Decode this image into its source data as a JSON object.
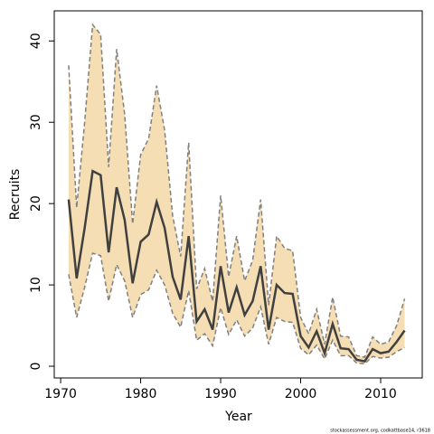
{
  "chart_data": {
    "type": "line",
    "xlabel": "Year",
    "ylabel": "Recruits",
    "footnote": "stockassessment.org, codkattbase14, r3618",
    "x": [
      1971,
      1972,
      1973,
      1974,
      1975,
      1976,
      1977,
      1978,
      1979,
      1980,
      1981,
      1982,
      1983,
      1984,
      1985,
      1986,
      1987,
      1988,
      1989,
      1990,
      1991,
      1992,
      1993,
      1994,
      1995,
      1996,
      1997,
      1998,
      1999,
      2000,
      2001,
      2002,
      2003,
      2004,
      2005,
      2006,
      2007,
      2008,
      2009,
      2010,
      2011,
      2012,
      2013
    ],
    "values": [
      20.5,
      10.8,
      17,
      24,
      23.5,
      14,
      22,
      18,
      10.2,
      15.3,
      16.2,
      20.2,
      17,
      11,
      8.2,
      16,
      5.5,
      7,
      4.5,
      12.3,
      6.6,
      9.7,
      6.3,
      8,
      12.3,
      4.5,
      10,
      9,
      8.9,
      3.7,
      2.3,
      4.3,
      1.6,
      5.2,
      2.2,
      2.1,
      0.8,
      0.6,
      2.1,
      1.6,
      1.8,
      3,
      4.4
    ],
    "upper": [
      37,
      19.5,
      30,
      42,
      40.8,
      24.5,
      39,
      31,
      17.5,
      26,
      28,
      34.5,
      29,
      18.5,
      13.5,
      27.5,
      9.5,
      12,
      8,
      21,
      11,
      16,
      10.5,
      13,
      20.5,
      7.5,
      16,
      14.5,
      14.2,
      6,
      4,
      7,
      2.7,
      8.5,
      3.7,
      3.6,
      1.3,
      1.1,
      3.6,
      2.7,
      3,
      5,
      8.3
    ],
    "lower": [
      11.3,
      6,
      9.7,
      13.9,
      13.6,
      8,
      12.5,
      10.5,
      6,
      8.8,
      9.4,
      11.8,
      10,
      6.5,
      4.8,
      9.3,
      3.2,
      4,
      2.5,
      7.2,
      3.9,
      5.7,
      3.7,
      4.7,
      7.3,
      2.7,
      6,
      5.5,
      5.4,
      2.2,
      1.4,
      2.6,
      0.9,
      3.2,
      1.3,
      1.3,
      0.4,
      0.3,
      1.2,
      1,
      1.1,
      1.8,
      2.3
    ],
    "color": "#404040",
    "band_color": "#f5deb3",
    "band_edge_color": "#808080",
    "xlim": [
      1969.2,
      2015.2
    ],
    "ylim": [
      -1.44,
      43.7
    ],
    "xticks": [
      1970,
      1980,
      1990,
      2000,
      2010
    ],
    "yticks": [
      0,
      10,
      20,
      30,
      40
    ]
  }
}
